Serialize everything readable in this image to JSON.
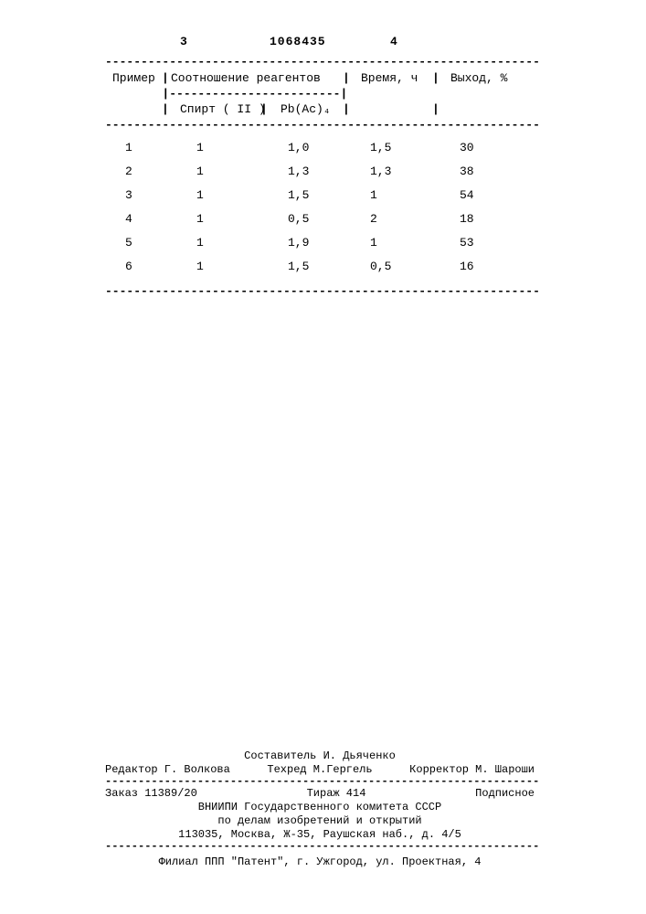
{
  "page": {
    "left_num": "3",
    "doc_num": "1068435",
    "right_num": "4"
  },
  "table": {
    "dash_full": "-------------------------------------------------------------",
    "dash_sub": "        |------------------------|",
    "dash_bottom": "-------------------------------------------------------------",
    "sep": "|",
    "headers": {
      "c1": "Пример",
      "c2": "Соотношение  реагентов",
      "c3": "Время, ч",
      "c4": "Выход, %"
    },
    "subheaders": {
      "s1": "Спирт ( II )",
      "s2": "Pb(Ac)₄"
    },
    "rows": [
      {
        "n": "1",
        "a": "1",
        "b": "1,0",
        "t": "1,5",
        "y": "30"
      },
      {
        "n": "2",
        "a": "1",
        "b": "1,3",
        "t": "1,3",
        "y": "38"
      },
      {
        "n": "3",
        "a": "1",
        "b": "1,5",
        "t": "1",
        "y": "54"
      },
      {
        "n": "4",
        "a": "1",
        "b": "0,5",
        "t": "2",
        "y": "18"
      },
      {
        "n": "5",
        "a": "1",
        "b": "1,9",
        "t": "1",
        "y": "53"
      },
      {
        "n": "6",
        "a": "1",
        "b": "1,5",
        "t": "0,5",
        "y": "16"
      }
    ]
  },
  "footer": {
    "dash": "------------------------------------------------------------------",
    "compiler": "Составитель И. Дьяченко",
    "editor": "Редактор Г. Волкова",
    "techred": "Техред М.Гергель",
    "corrector": "Корректор М. Шароши",
    "order": "Заказ 11389/20",
    "tirage": "Тираж  414",
    "podpis": "Подписное",
    "org1": "ВНИИПИ Государственного комитета СССР",
    "org2": "по делам изобретений и открытий",
    "addr1": "113035, Москва, Ж-35, Раушская наб., д. 4/5",
    "branch": "Филиал ППП \"Патент\", г. Ужгород, ул. Проектная, 4"
  }
}
